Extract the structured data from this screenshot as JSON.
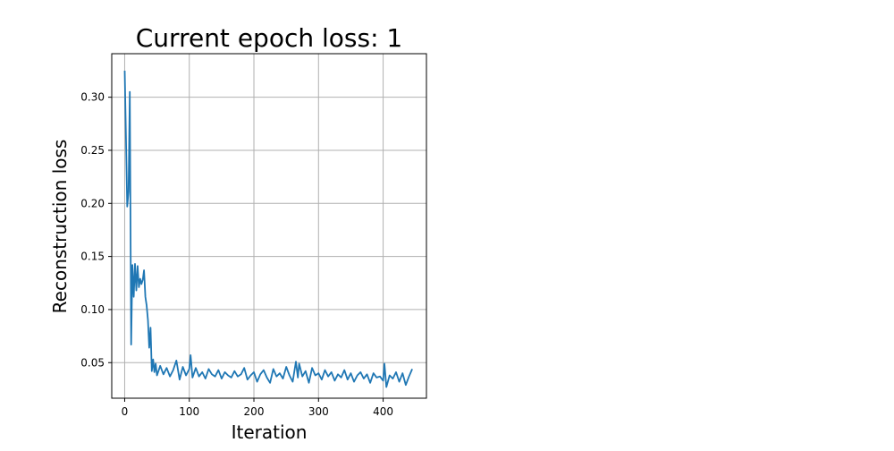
{
  "chart_data": {
    "type": "line",
    "title": "Current epoch loss: 1",
    "xlabel": "Iteration",
    "ylabel": "Reconstruction loss",
    "xlim": [
      -20,
      467
    ],
    "ylim": [
      0.0165,
      0.341
    ],
    "xticks": [
      0,
      100,
      200,
      300,
      400
    ],
    "yticks": [
      0.05,
      0.1,
      0.15,
      0.2,
      0.25,
      0.3
    ],
    "ytick_labels": [
      "0.05",
      "0.10",
      "0.15",
      "0.20",
      "0.25",
      "0.30"
    ],
    "grid": true,
    "colors": {
      "line": "#1f77b4",
      "grid": "#b0b0b0"
    },
    "series": [
      {
        "x": [
          0,
          2,
          4,
          6,
          8,
          10,
          12,
          14,
          16,
          18,
          20,
          22,
          24,
          26,
          28,
          30,
          32,
          34,
          36,
          38,
          40,
          42,
          44,
          46,
          48,
          50,
          55,
          60,
          65,
          70,
          75,
          80,
          85,
          90,
          95,
          100,
          102,
          105,
          110,
          115,
          120,
          125,
          130,
          135,
          140,
          145,
          150,
          155,
          160,
          165,
          170,
          175,
          180,
          185,
          190,
          195,
          200,
          205,
          210,
          215,
          220,
          225,
          230,
          235,
          240,
          245,
          250,
          255,
          260,
          265,
          268,
          270,
          275,
          280,
          285,
          290,
          295,
          300,
          305,
          310,
          315,
          320,
          325,
          330,
          335,
          340,
          345,
          350,
          355,
          360,
          365,
          370,
          375,
          380,
          385,
          390,
          395,
          400,
          402,
          405,
          410,
          415,
          420,
          425,
          430,
          435,
          440,
          445
        ],
        "y": [
          0.325,
          0.262,
          0.197,
          0.211,
          0.305,
          0.067,
          0.142,
          0.112,
          0.143,
          0.118,
          0.141,
          0.121,
          0.129,
          0.124,
          0.128,
          0.137,
          0.112,
          0.104,
          0.09,
          0.064,
          0.083,
          0.042,
          0.053,
          0.041,
          0.049,
          0.038,
          0.047,
          0.039,
          0.045,
          0.037,
          0.043,
          0.052,
          0.034,
          0.046,
          0.038,
          0.044,
          0.057,
          0.036,
          0.045,
          0.037,
          0.041,
          0.035,
          0.044,
          0.039,
          0.037,
          0.043,
          0.035,
          0.041,
          0.038,
          0.036,
          0.042,
          0.037,
          0.039,
          0.045,
          0.034,
          0.038,
          0.041,
          0.032,
          0.039,
          0.043,
          0.036,
          0.031,
          0.044,
          0.037,
          0.04,
          0.035,
          0.046,
          0.038,
          0.032,
          0.051,
          0.036,
          0.049,
          0.037,
          0.042,
          0.031,
          0.045,
          0.038,
          0.04,
          0.034,
          0.043,
          0.037,
          0.041,
          0.033,
          0.039,
          0.036,
          0.043,
          0.034,
          0.04,
          0.032,
          0.038,
          0.041,
          0.035,
          0.039,
          0.031,
          0.04,
          0.036,
          0.037,
          0.033,
          0.049,
          0.027,
          0.038,
          0.035,
          0.041,
          0.032,
          0.04,
          0.029,
          0.037,
          0.044
        ]
      }
    ]
  }
}
